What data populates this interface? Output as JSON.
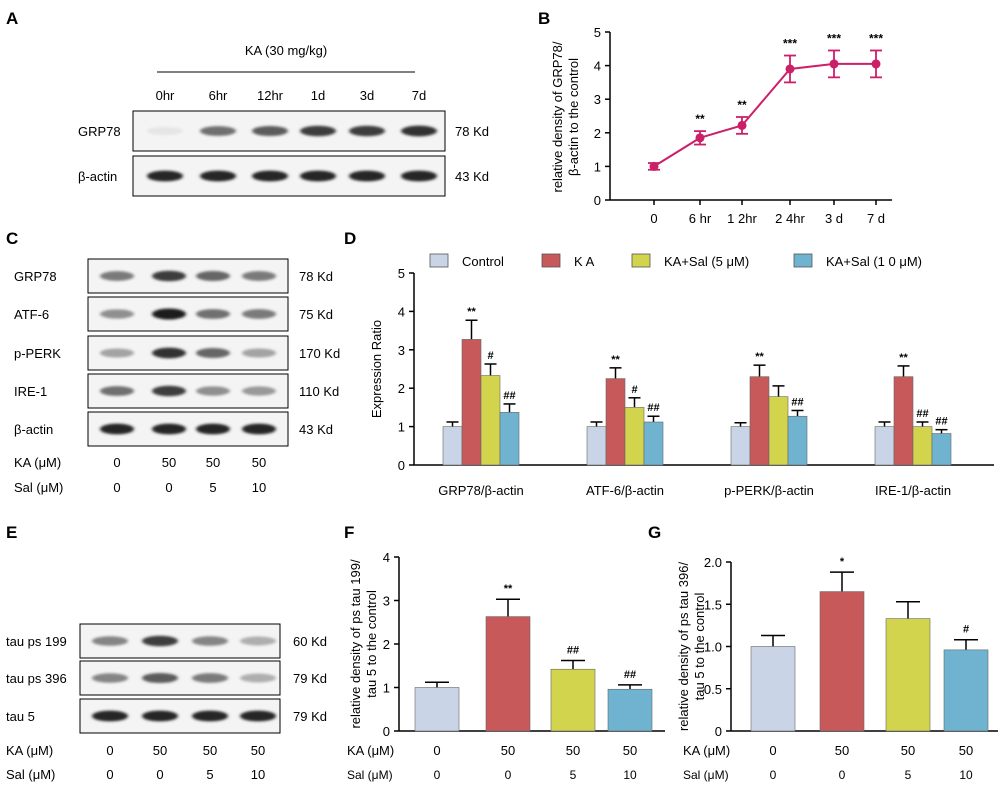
{
  "panel_letters": {
    "A": "A",
    "B": "B",
    "C": "C",
    "D": "D",
    "E": "E",
    "F": "F",
    "G": "G"
  },
  "colors": {
    "control": "#c9d5e6",
    "ka": "#c8595a",
    "ka_sal5": "#d2d44e",
    "ka_sal10": "#6fb3d0",
    "line": "#cc1f6a",
    "axis": "#000000"
  },
  "blot_a": {
    "treatment": "KA (30 mg/kg)",
    "lanes": [
      "0hr",
      "6hr",
      "12hr",
      "1d",
      "3d",
      "7d"
    ],
    "rows": [
      {
        "label": "GRP78",
        "size": "78 Kd",
        "intensity": [
          0.03,
          0.6,
          0.7,
          0.85,
          0.85,
          0.9
        ]
      },
      {
        "label": "β-actin",
        "size": "43 Kd",
        "intensity": [
          0.95,
          0.95,
          0.95,
          0.95,
          0.95,
          0.95
        ]
      }
    ]
  },
  "blot_c": {
    "rows": [
      {
        "label": "GRP78",
        "size": "78 Kd",
        "intensity": [
          0.55,
          0.85,
          0.65,
          0.55
        ]
      },
      {
        "label": "ATF-6",
        "size": "75 Kd",
        "intensity": [
          0.45,
          1.0,
          0.6,
          0.55
        ]
      },
      {
        "label": "p-PERK",
        "size": "170 Kd",
        "intensity": [
          0.35,
          0.9,
          0.65,
          0.35
        ]
      },
      {
        "label": "IRE-1",
        "size": "110 Kd",
        "intensity": [
          0.6,
          0.85,
          0.45,
          0.4
        ]
      },
      {
        "label": "β-actin",
        "size": "43 Kd",
        "intensity": [
          0.95,
          0.95,
          0.95,
          0.95
        ]
      }
    ],
    "ka_label": "KA (μM)",
    "ka_values": [
      "0",
      "50",
      "50",
      "50"
    ],
    "sal_label": "Sal (μM)",
    "sal_values": [
      "0",
      "0",
      "5",
      "10"
    ]
  },
  "blot_e": {
    "rows": [
      {
        "label": "tau ps 199",
        "size": "60 Kd",
        "intensity": [
          0.5,
          0.85,
          0.5,
          0.3
        ]
      },
      {
        "label": "tau ps 396",
        "size": "79 Kd",
        "intensity": [
          0.5,
          0.7,
          0.55,
          0.3
        ]
      },
      {
        "label": "tau 5",
        "size": "79 Kd",
        "intensity": [
          0.95,
          0.95,
          0.95,
          0.95
        ]
      }
    ],
    "ka_label": "KA (μM)",
    "ka_values": [
      "0",
      "50",
      "50",
      "50"
    ],
    "sal_label": "Sal (μM)",
    "sal_values": [
      "0",
      "0",
      "5",
      "10"
    ]
  },
  "chart_data": [
    {
      "id": "B",
      "type": "line",
      "ylabel_line1": "relative density of  GRP78/",
      "ylabel_line2": "β-actin  to the control",
      "categories": [
        "0",
        "6 hr",
        "1 2hr",
        "2 4hr",
        "3 d",
        "7 d"
      ],
      "values": [
        1.0,
        1.85,
        2.22,
        3.9,
        4.05,
        4.05
      ],
      "errors": [
        0.1,
        0.2,
        0.25,
        0.4,
        0.4,
        0.4
      ],
      "significance": [
        "",
        "**",
        "**",
        "***",
        "***",
        "***"
      ],
      "ylim": [
        0,
        5
      ],
      "yticks": [
        "0",
        "1",
        "2",
        "3",
        "4",
        "5"
      ]
    },
    {
      "id": "D",
      "type": "bar",
      "ylabel": "Expression Ratio",
      "legend": [
        "Control",
        "K A",
        "KA+Sal (5 μM)",
        "KA+Sal (1 0 μM)"
      ],
      "categories": [
        "GRP78/β-actin",
        "ATF-6/β-actin",
        "p-PERK/β-actin",
        "IRE-1/β-actin"
      ],
      "series": [
        {
          "name": "Control",
          "values": [
            1.0,
            1.0,
            1.0,
            1.0
          ],
          "errors": [
            0.12,
            0.12,
            0.1,
            0.12
          ],
          "marks": [
            "",
            "",
            "",
            ""
          ]
        },
        {
          "name": "K A",
          "values": [
            3.27,
            2.25,
            2.3,
            2.3
          ],
          "errors": [
            0.5,
            0.28,
            0.3,
            0.28
          ],
          "marks": [
            "**",
            "**",
            "**",
            "**"
          ]
        },
        {
          "name": "KA+Sal (5 μM)",
          "values": [
            2.33,
            1.5,
            1.78,
            1.0
          ],
          "errors": [
            0.3,
            0.25,
            0.28,
            0.12
          ],
          "marks": [
            "#",
            "#",
            "",
            "##"
          ]
        },
        {
          "name": "KA+Sal (1 0 μM)",
          "values": [
            1.37,
            1.12,
            1.27,
            0.82
          ],
          "errors": [
            0.22,
            0.15,
            0.15,
            0.1
          ],
          "marks": [
            "##",
            "##",
            "##",
            "##"
          ]
        }
      ],
      "ylim": [
        0,
        5
      ],
      "yticks": [
        "0",
        "1",
        "2",
        "3",
        "4",
        "5"
      ]
    },
    {
      "id": "F",
      "type": "bar",
      "ylabel_line1": "relative density of  ps tau 199/",
      "ylabel_line2": "tau 5 to the control",
      "values": [
        1.0,
        2.63,
        1.42,
        0.96
      ],
      "errors": [
        0.12,
        0.4,
        0.2,
        0.1
      ],
      "marks": [
        "",
        "**",
        "##",
        "##"
      ],
      "ylim": [
        0,
        4
      ],
      "yticks": [
        "0",
        "1",
        "2",
        "3",
        "4"
      ],
      "ka_label": "KA (μM)",
      "ka_values": [
        "0",
        "50",
        "50",
        "50"
      ],
      "sal_label": "Sal (μM)",
      "sal_values": [
        "0",
        "0",
        "5",
        "10"
      ]
    },
    {
      "id": "G",
      "type": "bar",
      "ylabel_line1": "relative density of  ps tau 396/",
      "ylabel_line2": "tau 5 to the control",
      "values": [
        1.0,
        1.65,
        1.33,
        0.96
      ],
      "errors": [
        0.13,
        0.23,
        0.2,
        0.12
      ],
      "marks": [
        "",
        "*",
        "",
        "#"
      ],
      "ylim": [
        0,
        2
      ],
      "yticks": [
        "0",
        "0.5",
        "1.0",
        "1.5",
        "2.0"
      ],
      "ka_label": "KA (μM)",
      "ka_values": [
        "0",
        "50",
        "50",
        "50"
      ],
      "sal_label": "Sal (μM)",
      "sal_values": [
        "0",
        "0",
        "5",
        "10"
      ]
    }
  ]
}
